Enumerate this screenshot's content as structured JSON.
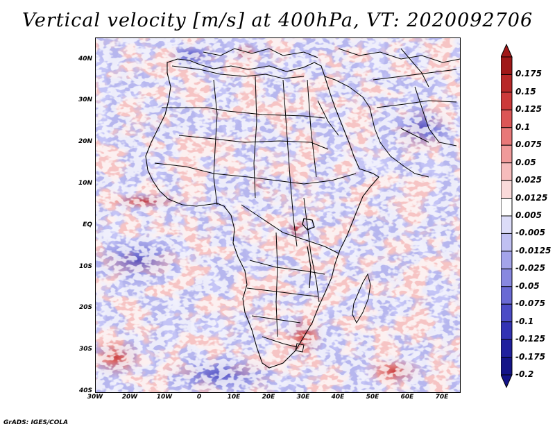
{
  "title": "Vertical velocity [m/s] at 400hPa, VT: 2020092706",
  "credit": "GrADS: IGES/COLA",
  "lat_labels": [
    "40N",
    "30N",
    "20N",
    "10N",
    "EQ",
    "10S",
    "20S",
    "30S",
    "40S"
  ],
  "lon_labels": [
    "30W",
    "20W",
    "10W",
    "0",
    "10E",
    "20E",
    "30E",
    "40E",
    "50E",
    "60E",
    "70E"
  ],
  "colorbar": {
    "labels": [
      "0.175",
      "0.15",
      "0.125",
      "0.1",
      "0.075",
      "0.05",
      "0.025",
      "0.0125",
      "0.005",
      "-0.005",
      "-0.0125",
      "-0.025",
      "-0.05",
      "-0.075",
      "-0.1",
      "-0.125",
      "-0.175",
      "-0.2"
    ],
    "colors": [
      "#a01818",
      "#b82828",
      "#cc3a3a",
      "#dc5656",
      "#e87878",
      "#f09a9a",
      "#f6bcbc",
      "#fadada",
      "#ffffff",
      "#dcdcf8",
      "#c0c0f2",
      "#a4a4ea",
      "#8888e0",
      "#6a6ad4",
      "#4c4cc6",
      "#3232b4",
      "#20209e",
      "#141488"
    ]
  }
}
